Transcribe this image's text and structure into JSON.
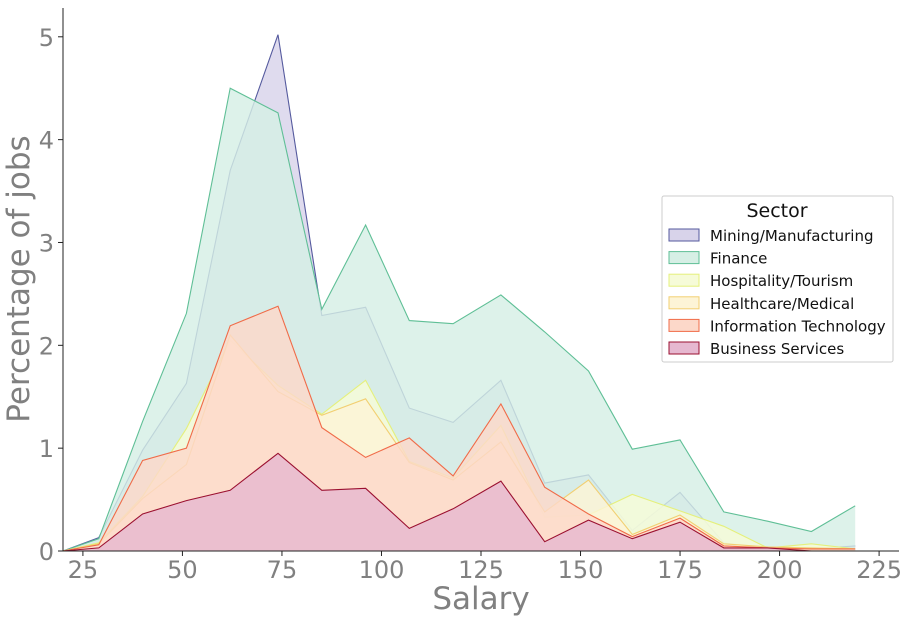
{
  "chart_data": {
    "type": "area",
    "xlabel": "Salary",
    "ylabel": "Percentage of jobs",
    "xlim": [
      20,
      230
    ],
    "ylim": [
      0,
      5.28
    ],
    "xticks": [
      25,
      50,
      75,
      100,
      125,
      150,
      175,
      200,
      225
    ],
    "yticks": [
      0,
      1,
      2,
      3,
      4,
      5
    ],
    "x": [
      20,
      29,
      40,
      51,
      62,
      74,
      85,
      96,
      107,
      118,
      130,
      141,
      152,
      163,
      175,
      186,
      197,
      208,
      219
    ],
    "legend": {
      "title": "Sector",
      "position": "center-right"
    },
    "grid": false,
    "series": [
      {
        "name": "Mining/Manufacturing",
        "fill": "#d8d3ea",
        "stroke": "#555a9e",
        "values": [
          0.0,
          0.13,
          0.98,
          1.63,
          3.7,
          5.02,
          2.29,
          2.37,
          1.39,
          1.25,
          1.66,
          0.66,
          0.74,
          0.2,
          0.57,
          0.08,
          0.02,
          0.02,
          0.05
        ]
      },
      {
        "name": "Finance",
        "fill": "#d6efe5",
        "stroke": "#5fbf96",
        "values": [
          0.0,
          0.12,
          1.26,
          2.31,
          4.5,
          4.26,
          2.35,
          3.17,
          2.24,
          2.21,
          2.49,
          2.13,
          1.75,
          0.99,
          1.08,
          0.38,
          0.29,
          0.19,
          0.44
        ]
      },
      {
        "name": "Hospitality/Tourism",
        "fill": "#f6fbd8",
        "stroke": "#e5f07c",
        "values": [
          0.0,
          0.08,
          0.53,
          1.19,
          2.05,
          1.61,
          1.33,
          1.66,
          0.87,
          0.71,
          1.22,
          0.33,
          0.35,
          0.55,
          0.39,
          0.24,
          0.03,
          0.07,
          0.02
        ]
      },
      {
        "name": "Healthcare/Medical",
        "fill": "#fdf4d6",
        "stroke": "#f2cf72",
        "values": [
          0.0,
          0.07,
          0.51,
          0.84,
          2.1,
          1.55,
          1.32,
          1.48,
          0.86,
          0.69,
          1.06,
          0.38,
          0.69,
          0.16,
          0.35,
          0.07,
          0.04,
          0.03,
          0.02
        ]
      },
      {
        "name": "Information Technology",
        "fill": "#fcd8c9",
        "stroke": "#f06b48",
        "values": [
          0.0,
          0.06,
          0.88,
          1.0,
          2.19,
          2.38,
          1.2,
          0.91,
          1.1,
          0.73,
          1.43,
          0.62,
          0.36,
          0.14,
          0.32,
          0.05,
          0.03,
          0.02,
          0.02
        ]
      },
      {
        "name": "Business Services",
        "fill": "#e6b8d0",
        "stroke": "#9b1030",
        "values": [
          0.0,
          0.03,
          0.36,
          0.49,
          0.59,
          0.95,
          0.59,
          0.61,
          0.22,
          0.41,
          0.68,
          0.09,
          0.3,
          0.12,
          0.28,
          0.03,
          0.03,
          0.0,
          0.0
        ]
      }
    ]
  }
}
